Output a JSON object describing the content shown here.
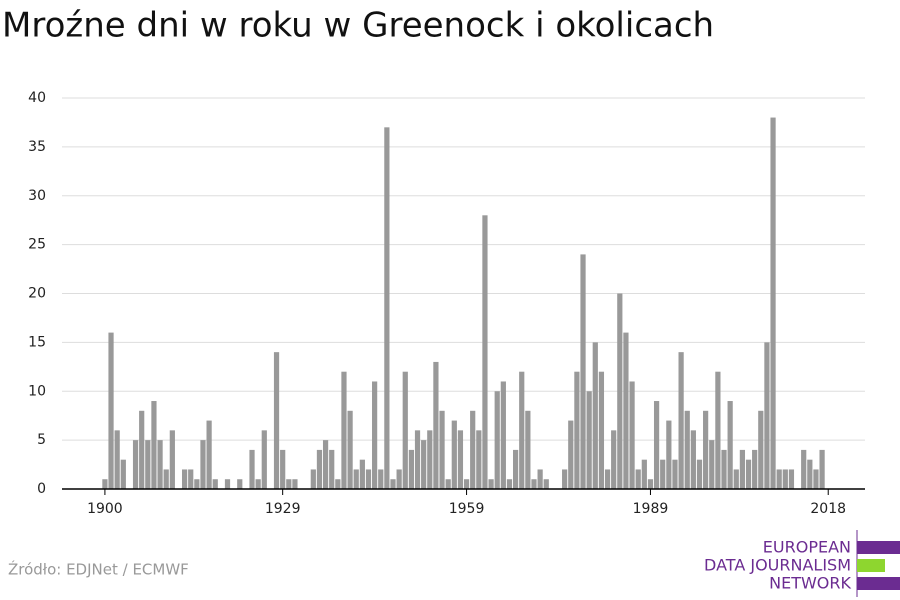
{
  "chart_data": {
    "type": "bar",
    "title": "Mroźne dni w roku w Greenock i okolicach",
    "source": "Źródło: EDJNet / ECMWF",
    "logo": [
      "EUROPEAN",
      "DATA JOURNALISM",
      "NETWORK"
    ],
    "color": "#999999",
    "x": [
      1900,
      1901,
      1902,
      1903,
      1904,
      1905,
      1906,
      1907,
      1908,
      1909,
      1910,
      1911,
      1912,
      1913,
      1914,
      1915,
      1916,
      1917,
      1918,
      1919,
      1920,
      1921,
      1922,
      1923,
      1924,
      1925,
      1926,
      1927,
      1928,
      1929,
      1930,
      1931,
      1932,
      1933,
      1934,
      1935,
      1936,
      1937,
      1938,
      1939,
      1940,
      1941,
      1942,
      1943,
      1944,
      1945,
      1946,
      1947,
      1948,
      1949,
      1950,
      1951,
      1952,
      1953,
      1954,
      1955,
      1956,
      1957,
      1958,
      1959,
      1960,
      1961,
      1962,
      1963,
      1964,
      1965,
      1966,
      1967,
      1968,
      1969,
      1970,
      1971,
      1972,
      1973,
      1974,
      1975,
      1976,
      1977,
      1978,
      1979,
      1980,
      1981,
      1982,
      1983,
      1984,
      1985,
      1986,
      1987,
      1988,
      1989,
      1990,
      1991,
      1992,
      1993,
      1994,
      1995,
      1996,
      1997,
      1998,
      1999,
      2000,
      2001,
      2002,
      2003,
      2004,
      2005,
      2006,
      2007,
      2008,
      2009,
      2010,
      2011,
      2012,
      2013,
      2014,
      2015,
      2016,
      2017,
      2018
    ],
    "values": [
      1,
      16,
      6,
      3,
      0,
      5,
      8,
      5,
      9,
      5,
      2,
      6,
      0,
      2,
      2,
      1,
      5,
      7,
      1,
      0,
      1,
      0,
      1,
      0,
      4,
      1,
      6,
      0,
      14,
      4,
      1,
      1,
      0,
      0,
      2,
      4,
      5,
      4,
      1,
      12,
      8,
      2,
      3,
      2,
      11,
      2,
      37,
      1,
      2,
      12,
      4,
      6,
      5,
      6,
      13,
      8,
      1,
      7,
      6,
      1,
      8,
      6,
      28,
      1,
      10,
      11,
      1,
      4,
      12,
      8,
      1,
      2,
      1,
      0,
      0,
      2,
      7,
      12,
      24,
      10,
      15,
      12,
      2,
      6,
      20,
      16,
      11,
      2,
      3,
      1,
      9,
      3,
      7,
      3,
      14,
      8,
      6,
      3,
      8,
      5,
      12,
      4,
      9,
      2,
      4,
      3,
      4,
      8,
      15,
      38,
      2,
      2,
      2,
      0,
      4,
      3,
      2,
      4,
      0
    ],
    "xlim": [
      1893,
      2024
    ],
    "xticks": [
      1900,
      1929,
      1959,
      1989,
      2018
    ],
    "ylim": [
      0,
      40
    ],
    "yticks": [
      0,
      5,
      10,
      15,
      20,
      25,
      30,
      35,
      40
    ],
    "grid": true
  }
}
